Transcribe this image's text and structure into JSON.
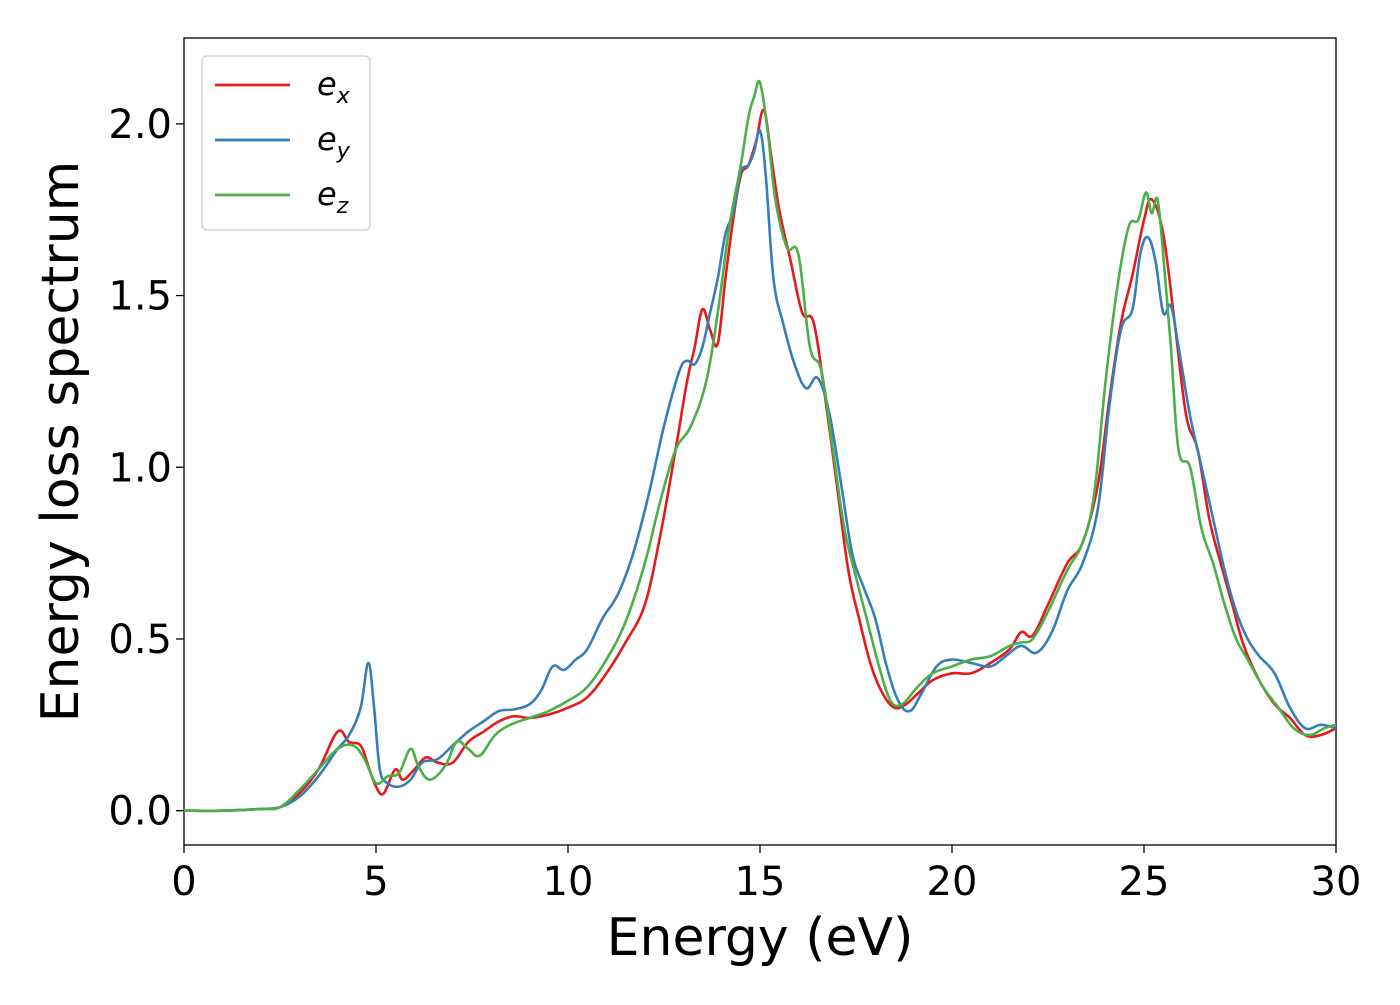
{
  "chart_data": {
    "type": "line",
    "title": "",
    "xlabel": "Energy (eV)",
    "ylabel": "Energy loss spectrum",
    "xlim": [
      0,
      30
    ],
    "ylim": [
      -0.1,
      2.25
    ],
    "xticks": [
      0,
      5,
      10,
      15,
      20,
      25,
      30
    ],
    "xtick_labels": [
      "0",
      "5",
      "10",
      "15",
      "20",
      "25",
      "30"
    ],
    "yticks": [
      0.0,
      0.5,
      1.0,
      1.5,
      2.0
    ],
    "ytick_labels": [
      "0.0",
      "0.5",
      "1.0",
      "1.5",
      "2.0"
    ],
    "grid": false,
    "legend_position": "top-left",
    "colors": {
      "ex": "#e41a1c",
      "ey": "#377eb8",
      "ez": "#4daf4a"
    },
    "series": [
      {
        "name": "e_x",
        "legend_base": "e",
        "legend_sub": "x",
        "color": "#e41a1c",
        "x": [
          0,
          1,
          2,
          2.5,
          3,
          3.5,
          4,
          4.3,
          4.6,
          4.8,
          5,
          5.2,
          5.5,
          5.7,
          6,
          6.3,
          6.6,
          7,
          7.4,
          7.8,
          8.2,
          8.6,
          9,
          9.5,
          10,
          10.5,
          11,
          11.5,
          12,
          12.4,
          12.8,
          13.1,
          13.3,
          13.5,
          13.7,
          13.9,
          14.1,
          14.3,
          14.5,
          14.7,
          14.9,
          15.1,
          15.3,
          15.5,
          15.8,
          16.1,
          16.4,
          16.7,
          17,
          17.3,
          17.6,
          17.9,
          18.2,
          18.5,
          18.8,
          19.1,
          19.5,
          20,
          20.5,
          21,
          21.5,
          21.8,
          22.1,
          22.5,
          23,
          23.4,
          23.8,
          24.1,
          24.4,
          24.7,
          25,
          25.2,
          25.5,
          25.8,
          26.1,
          26.4,
          26.7,
          27,
          27.3,
          27.6,
          28,
          28.4,
          28.8,
          29.2,
          29.6,
          30
        ],
        "y": [
          0.0,
          0.0,
          0.005,
          0.01,
          0.05,
          0.12,
          0.23,
          0.2,
          0.19,
          0.13,
          0.07,
          0.05,
          0.12,
          0.09,
          0.12,
          0.155,
          0.14,
          0.14,
          0.2,
          0.23,
          0.26,
          0.275,
          0.27,
          0.28,
          0.3,
          0.33,
          0.4,
          0.49,
          0.6,
          0.8,
          1.05,
          1.25,
          1.35,
          1.46,
          1.4,
          1.36,
          1.55,
          1.72,
          1.85,
          1.88,
          1.95,
          2.04,
          1.9,
          1.75,
          1.6,
          1.45,
          1.42,
          1.2,
          0.95,
          0.7,
          0.55,
          0.42,
          0.34,
          0.3,
          0.31,
          0.34,
          0.38,
          0.4,
          0.4,
          0.43,
          0.47,
          0.52,
          0.51,
          0.6,
          0.72,
          0.78,
          0.95,
          1.2,
          1.42,
          1.56,
          1.72,
          1.78,
          1.68,
          1.42,
          1.15,
          1.05,
          0.85,
          0.72,
          0.6,
          0.48,
          0.38,
          0.31,
          0.27,
          0.22,
          0.22,
          0.24
        ]
      },
      {
        "name": "e_y",
        "legend_base": "e",
        "legend_sub": "y",
        "color": "#377eb8",
        "x": [
          0,
          1,
          2,
          2.5,
          3,
          3.5,
          4,
          4.3,
          4.6,
          4.8,
          4.95,
          5.1,
          5.3,
          5.6,
          5.9,
          6.2,
          6.6,
          7,
          7.4,
          7.8,
          8.2,
          8.6,
          9,
          9.3,
          9.6,
          9.9,
          10.2,
          10.5,
          10.9,
          11.3,
          11.7,
          12.1,
          12.5,
          12.9,
          13.1,
          13.3,
          13.5,
          13.7,
          13.9,
          14.1,
          14.3,
          14.5,
          14.7,
          14.85,
          15,
          15.15,
          15.35,
          15.6,
          15.9,
          16.2,
          16.5,
          16.8,
          17.1,
          17.4,
          17.7,
          18,
          18.3,
          18.6,
          18.9,
          19.2,
          19.6,
          20,
          20.5,
          21,
          21.4,
          21.8,
          22.2,
          22.6,
          23,
          23.4,
          23.8,
          24.1,
          24.4,
          24.7,
          24.9,
          25.1,
          25.3,
          25.5,
          25.7,
          25.9,
          26.2,
          26.5,
          26.8,
          27.1,
          27.4,
          27.7,
          28,
          28.4,
          28.8,
          29.2,
          29.6,
          30
        ],
        "y": [
          0.0,
          0.0,
          0.005,
          0.01,
          0.04,
          0.1,
          0.18,
          0.22,
          0.3,
          0.43,
          0.3,
          0.12,
          0.08,
          0.07,
          0.09,
          0.14,
          0.15,
          0.19,
          0.23,
          0.26,
          0.29,
          0.295,
          0.31,
          0.35,
          0.42,
          0.41,
          0.44,
          0.47,
          0.56,
          0.63,
          0.75,
          0.92,
          1.12,
          1.28,
          1.31,
          1.3,
          1.35,
          1.45,
          1.55,
          1.68,
          1.74,
          1.86,
          1.88,
          1.92,
          1.98,
          1.85,
          1.55,
          1.42,
          1.3,
          1.23,
          1.26,
          1.16,
          0.96,
          0.75,
          0.65,
          0.56,
          0.42,
          0.32,
          0.29,
          0.34,
          0.42,
          0.44,
          0.43,
          0.42,
          0.45,
          0.48,
          0.46,
          0.52,
          0.64,
          0.72,
          0.88,
          1.18,
          1.4,
          1.46,
          1.62,
          1.67,
          1.6,
          1.45,
          1.47,
          1.35,
          1.15,
          1.0,
          0.85,
          0.7,
          0.58,
          0.5,
          0.45,
          0.4,
          0.3,
          0.24,
          0.25,
          0.24
        ]
      },
      {
        "name": "e_z",
        "legend_base": "e",
        "legend_sub": "z",
        "color": "#4daf4a",
        "x": [
          0,
          1,
          2,
          2.5,
          3,
          3.5,
          4,
          4.4,
          4.7,
          5,
          5.3,
          5.6,
          5.9,
          6.1,
          6.4,
          6.8,
          7.1,
          7.4,
          7.7,
          8.1,
          8.5,
          9,
          9.5,
          10,
          10.5,
          11,
          11.5,
          12,
          12.4,
          12.8,
          13.2,
          13.6,
          13.9,
          14.2,
          14.5,
          14.7,
          14.85,
          15,
          15.2,
          15.4,
          15.7,
          16,
          16.3,
          16.6,
          16.9,
          17.2,
          17.5,
          17.8,
          18.1,
          18.4,
          18.7,
          19.1,
          19.5,
          20,
          20.5,
          21,
          21.5,
          21.8,
          22.1,
          22.5,
          23,
          23.4,
          23.7,
          24,
          24.3,
          24.6,
          24.85,
          25.05,
          25.2,
          25.35,
          25.5,
          25.7,
          25.9,
          26.2,
          26.5,
          26.8,
          27.1,
          27.4,
          27.7,
          28.1,
          28.5,
          28.9,
          29.3,
          29.7,
          30
        ],
        "y": [
          0.0,
          0.0,
          0.005,
          0.01,
          0.06,
          0.12,
          0.18,
          0.19,
          0.15,
          0.08,
          0.1,
          0.11,
          0.18,
          0.13,
          0.09,
          0.13,
          0.2,
          0.18,
          0.16,
          0.22,
          0.25,
          0.27,
          0.29,
          0.32,
          0.36,
          0.44,
          0.55,
          0.72,
          0.9,
          1.05,
          1.12,
          1.25,
          1.45,
          1.7,
          1.88,
          2.02,
          2.08,
          2.12,
          1.98,
          1.78,
          1.64,
          1.62,
          1.35,
          1.28,
          1.05,
          0.82,
          0.68,
          0.55,
          0.42,
          0.32,
          0.31,
          0.36,
          0.4,
          0.42,
          0.44,
          0.45,
          0.48,
          0.49,
          0.5,
          0.58,
          0.7,
          0.78,
          0.92,
          1.25,
          1.52,
          1.7,
          1.72,
          1.8,
          1.74,
          1.78,
          1.62,
          1.35,
          1.05,
          1.0,
          0.82,
          0.72,
          0.6,
          0.5,
          0.44,
          0.36,
          0.3,
          0.24,
          0.22,
          0.24,
          0.25
        ]
      }
    ]
  }
}
